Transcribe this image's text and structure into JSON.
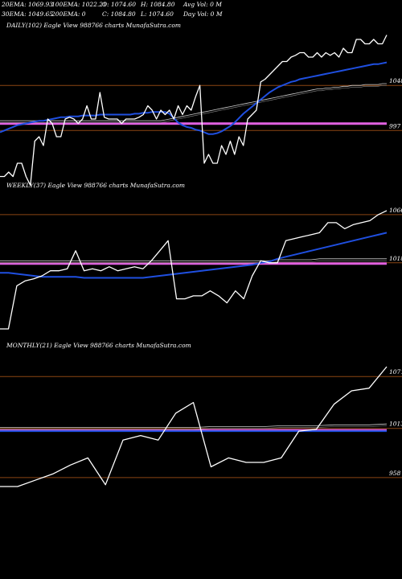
{
  "header": {
    "row1": [
      "20EMA: 1069.93",
      "100EMA: 1022.21",
      "O: 1074.60",
      "H: 1084.80",
      "Avg Vol: 0  M"
    ],
    "row2": [
      "30EMA: 1049.65",
      "200EMA: 0",
      "C: 1084.80",
      "L: 1074.60",
      "Day Vol: 0  M"
    ]
  },
  "colors": {
    "background": "#000000",
    "price": "#ffffff",
    "ema_fast": "#1f4fe0",
    "ema_slow": "#cccccc",
    "level": "#8b4513",
    "highlight": "#e060e0"
  },
  "chart_data": [
    {
      "type": "line",
      "title": "DAILY(102) Eagle  View  988766  charts MunafaSutra.com",
      "levels": [
        {
          "label": "1048",
          "value": 1048
        },
        {
          "label": "997",
          "value": 997
        }
      ],
      "ylim": [
        940,
        1110
      ],
      "price": [
        945,
        945,
        950,
        945,
        960,
        960,
        945,
        935,
        985,
        990,
        980,
        1010,
        1005,
        990,
        990,
        1010,
        1012,
        1010,
        1005,
        1010,
        1025,
        1010,
        1010,
        1040,
        1012,
        1010,
        1010,
        1010,
        1005,
        1010,
        1010,
        1010,
        1012,
        1015,
        1025,
        1020,
        1010,
        1020,
        1015,
        1020,
        1010,
        1025,
        1015,
        1025,
        1020,
        1035,
        1048,
        960,
        970,
        960,
        960,
        980,
        970,
        985,
        970,
        990,
        980,
        1010,
        1015,
        1020,
        1052,
        1055,
        1060,
        1065,
        1070,
        1075,
        1075,
        1080,
        1082,
        1085,
        1085,
        1080,
        1080,
        1085,
        1080,
        1085,
        1082,
        1085,
        1080,
        1090,
        1085,
        1085,
        1100,
        1100,
        1095,
        1095,
        1100,
        1095,
        1095,
        1105
      ],
      "ema_fast": [
        995,
        997,
        999,
        1001,
        1003,
        1004,
        1005,
        1006,
        1007,
        1008,
        1008,
        1009,
        1010,
        1011,
        1012,
        1012,
        1013,
        1013,
        1013,
        1014,
        1014,
        1014,
        1014,
        1015,
        1015,
        1015,
        1015,
        1015,
        1015,
        1015,
        1015,
        1016,
        1016,
        1017,
        1017,
        1018,
        1018,
        1018,
        1018,
        1016,
        1011,
        1006,
        1003,
        1001,
        1000,
        998,
        997,
        995,
        993,
        993,
        994,
        996,
        999,
        1002,
        1006,
        1011,
        1016,
        1020,
        1024,
        1028,
        1032,
        1036,
        1040,
        1043,
        1046,
        1048,
        1050,
        1052,
        1053,
        1055,
        1056,
        1057,
        1058,
        1059,
        1060,
        1061,
        1062,
        1063,
        1064,
        1065,
        1066,
        1067,
        1068,
        1069,
        1070,
        1071,
        1072,
        1072,
        1073,
        1074
      ],
      "ema_slow": [
        1008,
        1008,
        1008,
        1008,
        1008,
        1008,
        1008,
        1008,
        1008,
        1008,
        1008,
        1008,
        1008,
        1008,
        1008,
        1008,
        1008,
        1008,
        1008,
        1008,
        1008,
        1008,
        1008,
        1008,
        1008,
        1008,
        1008,
        1008,
        1008,
        1008,
        1008,
        1008,
        1008,
        1008,
        1008,
        1008,
        1008,
        1008,
        1009,
        1010,
        1011,
        1012,
        1013,
        1014,
        1015,
        1016,
        1017,
        1018,
        1019,
        1020,
        1021,
        1022,
        1023,
        1024,
        1025,
        1026,
        1027,
        1028,
        1029,
        1030,
        1031,
        1032,
        1033,
        1034,
        1035,
        1036,
        1037,
        1038,
        1039,
        1040,
        1041,
        1042,
        1043,
        1044,
        1044,
        1045,
        1045,
        1046,
        1046,
        1047,
        1047,
        1048,
        1048,
        1048,
        1049,
        1049,
        1049,
        1049,
        1050,
        1050
      ]
    },
    {
      "type": "line",
      "title": "WEEKLY(37) Eagle  View  988766  charts MunafaSutra.com",
      "levels": [
        {
          "label": "1066",
          "value": 1066
        },
        {
          "label": "1018",
          "value": 1018
        }
      ],
      "ylim": [
        940,
        1090
      ],
      "price": [
        952,
        952,
        995,
        1000,
        1002,
        1005,
        1010,
        1010,
        1012,
        1030,
        1010,
        1012,
        1010,
        1014,
        1010,
        1012,
        1014,
        1012,
        1020,
        1030,
        1040,
        982,
        982,
        985,
        985,
        990,
        985,
        978,
        990,
        982,
        1005,
        1020,
        1018,
        1018,
        1040,
        1042,
        1044,
        1046,
        1048,
        1058,
        1058,
        1052,
        1056,
        1058,
        1060,
        1066,
        1070
      ],
      "ema_fast": [
        1008,
        1008,
        1007,
        1006,
        1005,
        1004,
        1004,
        1004,
        1004,
        1004,
        1003,
        1003,
        1003,
        1003,
        1003,
        1003,
        1003,
        1003,
        1004,
        1005,
        1006,
        1007,
        1008,
        1009,
        1010,
        1011,
        1012,
        1013,
        1014,
        1015,
        1016,
        1018,
        1019,
        1022,
        1024,
        1026,
        1028,
        1030,
        1032,
        1034,
        1036,
        1038,
        1040,
        1042,
        1044,
        1046,
        1048
      ],
      "ema_slow": [
        1020,
        1020,
        1020,
        1020,
        1020,
        1020,
        1020,
        1020,
        1020,
        1020,
        1020,
        1020,
        1020,
        1020,
        1020,
        1020,
        1020,
        1020,
        1020,
        1020,
        1020,
        1020,
        1020,
        1020,
        1020,
        1020,
        1020,
        1020,
        1020,
        1020,
        1020,
        1020,
        1020,
        1021,
        1021,
        1021,
        1021,
        1021,
        1022,
        1022,
        1022,
        1022,
        1022,
        1022,
        1022,
        1022,
        1022
      ]
    },
    {
      "type": "line",
      "title": "MONTHLY(21) Eagle  View  988766  charts MunafaSutra.com",
      "levels": [
        {
          "label": "1071",
          "value": 1071
        },
        {
          "label": "1013",
          "value": 1013
        },
        {
          "label": "958",
          "value": 958
        }
      ],
      "ylim": [
        930,
        1100
      ],
      "price": [
        948,
        948,
        955,
        962,
        972,
        980,
        950,
        1000,
        1005,
        1000,
        1030,
        1042,
        970,
        980,
        975,
        975,
        980,
        1010,
        1012,
        1040,
        1055,
        1058,
        1082
      ],
      "ema_fast": [
        1010,
        1010,
        1010,
        1010,
        1010,
        1010,
        1010,
        1010,
        1010,
        1010,
        1010,
        1010,
        1010,
        1010,
        1010,
        1010,
        1010,
        1010,
        1010,
        1010,
        1010,
        1010,
        1010
      ],
      "ema_slow": [
        1014,
        1014,
        1014,
        1014,
        1014,
        1014,
        1014,
        1014,
        1014,
        1014,
        1014,
        1014,
        1015,
        1015,
        1015,
        1015,
        1016,
        1016,
        1016,
        1017,
        1017,
        1017,
        1018
      ]
    }
  ]
}
